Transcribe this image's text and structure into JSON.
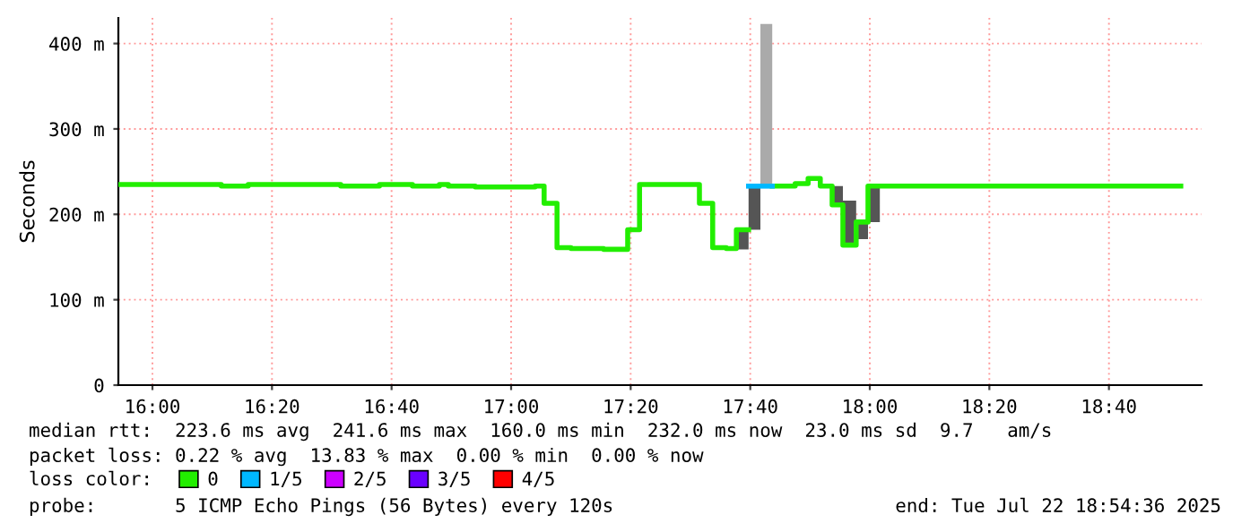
{
  "chart_data": {
    "type": "step",
    "ylabel": "Seconds",
    "xlim": [
      15.905,
      18.925
    ],
    "ylim": [
      0,
      430
    ],
    "xticks": [
      {
        "value": 16.0,
        "label": "16:00"
      },
      {
        "value": 16.3333,
        "label": "16:20"
      },
      {
        "value": 16.6667,
        "label": "16:40"
      },
      {
        "value": 17.0,
        "label": "17:00"
      },
      {
        "value": 17.3333,
        "label": "17:20"
      },
      {
        "value": 17.6667,
        "label": "17:40"
      },
      {
        "value": 18.0,
        "label": "18:00"
      },
      {
        "value": 18.3333,
        "label": "18:20"
      },
      {
        "value": 18.6667,
        "label": "18:40"
      }
    ],
    "yticks": [
      0,
      {
        "value": 100,
        "label": "100 m"
      },
      {
        "value": 200,
        "label": "200 m"
      },
      {
        "value": 300,
        "label": "300 m"
      },
      {
        "value": 400,
        "label": "400 m"
      }
    ],
    "grid": true,
    "legend": "bottom left",
    "legend_title": "loss color:",
    "series": [
      {
        "color": "#555555",
        "x": [
          17.628,
          17.662,
          17.695
        ],
        "values": [
          null,
          null,
          null
        ],
        "lower": [
          159,
          182,
          182
        ],
        "upper": [
          182,
          233,
          233
        ]
      },
      {
        "color": "#555555",
        "x": [
          17.895,
          17.925,
          17.962,
          17.995,
          18.028
        ],
        "values": [
          null,
          null,
          null,
          null,
          null
        ],
        "lower": [
          211,
          164,
          171,
          191,
          191
        ],
        "upper": [
          233,
          216,
          191,
          233,
          233
        ]
      },
      {
        "color": "#aaaaaa",
        "x": [
          17.695,
          17.728
        ],
        "values": [
          null,
          null
        ],
        "lower": [
          233,
          233
        ],
        "upper": [
          423,
          423
        ]
      },
      {
        "name": "0",
        "color": "#22ee00",
        "x": [
          15.908,
          16.192,
          16.267,
          16.525,
          16.633,
          16.725,
          16.8,
          16.825,
          16.9,
          17.067,
          17.092,
          17.128,
          17.167,
          17.258,
          17.325,
          17.358,
          17.525,
          17.562,
          17.6,
          17.628,
          17.662,
          17.728,
          17.792,
          17.828,
          17.862,
          17.895,
          17.925,
          17.962,
          17.995,
          18.867
        ],
        "values": [
          235,
          233,
          235,
          233,
          235,
          233,
          235,
          233,
          232,
          233,
          213,
          161,
          160,
          159,
          182,
          235,
          213,
          161,
          160,
          182,
          null,
          233,
          236,
          242,
          233,
          211,
          164,
          191,
          233,
          233
        ]
      },
      {
        "name": "1/5",
        "color": "#00b8ff",
        "x": [
          17.662,
          17.728
        ],
        "values": [
          233,
          233
        ]
      },
      {
        "name": "2/5",
        "color": "#cc00ff"
      },
      {
        "name": "3/5",
        "color": "#6a00ff"
      },
      {
        "name": "4/5",
        "color": "#ff0000"
      }
    ],
    "annotations": [
      "median rtt:  223.6 ms avg  241.6 ms max  160.0 ms min  232.0 ms now  23.0 ms sd  9.7   am/s",
      "packet loss: 0.22 % avg  13.83 % max  0.00 % min  0.00 % now",
      "probe:       5 ICMP Echo Pings (56 Bytes) every 120s",
      "end: Tue Jul 22 18:54:36 2025"
    ]
  }
}
